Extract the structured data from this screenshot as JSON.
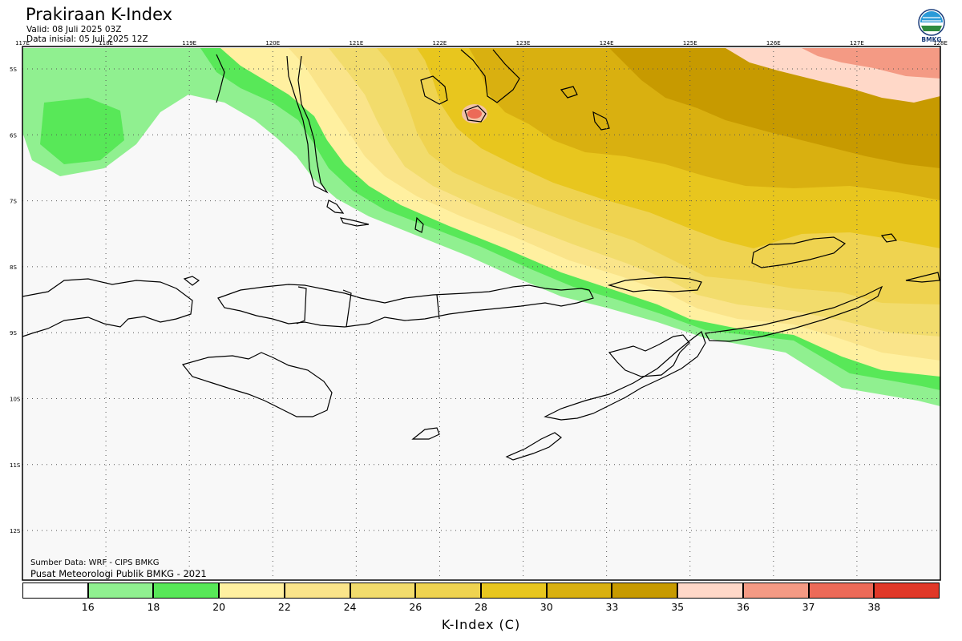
{
  "header": {
    "title": "Prakiraan K-Index",
    "valid": "Valid: 08 Juli 2025 03Z",
    "initial": "Data inisial: 05 Juli 2025 12Z",
    "logo_text": "BMKG"
  },
  "map": {
    "lon_labels": [
      "117E",
      "118E",
      "119E",
      "120E",
      "121E",
      "122E",
      "123E",
      "124E",
      "125E",
      "126E",
      "127E",
      "128E"
    ],
    "lat_labels": [
      "5S",
      "6S",
      "7S",
      "8S",
      "9S",
      "10S",
      "11S",
      "12S"
    ],
    "source": "Sumber Data: WRF - CIPS BMKG",
    "org": "Pusat Meteorologi Publik BMKG - 2021",
    "colors": {
      "no_data": "#f8f8f8",
      "k16_18": "#90f090",
      "k18_20": "#58e858",
      "k20_22": "#fff0a0",
      "k22_24": "#fae48a",
      "k24_26": "#f2dc6c",
      "k26_28": "#efd350",
      "k28_30": "#e8c61e",
      "k30_33": "#d9b010",
      "k33_35": "#c79a00",
      "k35_36": "#ffd8c8",
      "k36_37": "#f49a84",
      "k37_38": "#ec6a58",
      "k38_plus": "#e03828"
    }
  },
  "colorbar": {
    "title": "K-Index (C)",
    "labels": [
      "16",
      "18",
      "20",
      "22",
      "24",
      "26",
      "28",
      "30",
      "33",
      "35",
      "36",
      "37",
      "38"
    ],
    "colors": [
      "#ffffff",
      "#90f090",
      "#58e858",
      "#fff0a0",
      "#fae48a",
      "#f2dc6c",
      "#efd350",
      "#e8c61e",
      "#d9b010",
      "#c79a00",
      "#ffd8c8",
      "#f49a84",
      "#ec6a58",
      "#e03828"
    ]
  }
}
